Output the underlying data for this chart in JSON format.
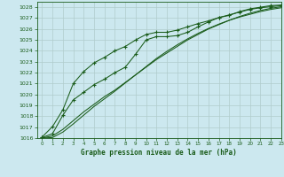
{
  "xlabel": "Graphe pression niveau de la mer (hPa)",
  "xlim": [
    -0.5,
    23
  ],
  "ylim": [
    1016,
    1028.5
  ],
  "yticks": [
    1016,
    1017,
    1018,
    1019,
    1020,
    1021,
    1022,
    1023,
    1024,
    1025,
    1026,
    1027,
    1028
  ],
  "xticks": [
    0,
    1,
    2,
    3,
    4,
    5,
    6,
    7,
    8,
    9,
    10,
    11,
    12,
    13,
    14,
    15,
    16,
    17,
    18,
    19,
    20,
    21,
    22,
    23
  ],
  "bg_color": "#cce8ef",
  "grid_color": "#b0cccc",
  "line_color": "#1a5c1a",
  "line_marker1_x": [
    0,
    1,
    2,
    3,
    4,
    5,
    6,
    7,
    8,
    9,
    10,
    11,
    12,
    13,
    14,
    15,
    16,
    17,
    18,
    19,
    20,
    21,
    22,
    23
  ],
  "line_marker1_y": [
    1016.1,
    1017.05,
    1018.6,
    1021.0,
    1022.1,
    1022.9,
    1023.4,
    1024.0,
    1024.4,
    1025.0,
    1025.5,
    1025.7,
    1025.7,
    1025.9,
    1026.2,
    1026.5,
    1026.75,
    1027.05,
    1027.25,
    1027.6,
    1027.85,
    1028.0,
    1028.15,
    1028.2
  ],
  "line_marker2_x": [
    0,
    1,
    2,
    3,
    4,
    5,
    6,
    7,
    8,
    9,
    10,
    11,
    12,
    13,
    14,
    15,
    16,
    17,
    18,
    19,
    20,
    21,
    22,
    23
  ],
  "line_marker2_y": [
    1016.05,
    1016.4,
    1018.1,
    1019.5,
    1020.2,
    1020.9,
    1021.4,
    1022.0,
    1022.5,
    1023.7,
    1025.0,
    1025.3,
    1025.3,
    1025.4,
    1025.7,
    1026.2,
    1026.65,
    1027.05,
    1027.3,
    1027.55,
    1027.8,
    1027.95,
    1028.05,
    1028.15
  ],
  "line_smooth1_y": [
    1016.0,
    1016.2,
    1016.8,
    1017.6,
    1018.4,
    1019.1,
    1019.8,
    1020.4,
    1021.1,
    1021.8,
    1022.5,
    1023.2,
    1023.8,
    1024.4,
    1025.0,
    1025.5,
    1026.0,
    1026.4,
    1026.8,
    1027.15,
    1027.45,
    1027.7,
    1027.9,
    1028.05
  ],
  "line_smooth2_y": [
    1016.0,
    1016.05,
    1016.55,
    1017.3,
    1018.1,
    1018.9,
    1019.6,
    1020.3,
    1021.05,
    1021.8,
    1022.55,
    1023.3,
    1023.95,
    1024.55,
    1025.1,
    1025.6,
    1026.05,
    1026.45,
    1026.8,
    1027.1,
    1027.35,
    1027.6,
    1027.8,
    1027.95
  ]
}
